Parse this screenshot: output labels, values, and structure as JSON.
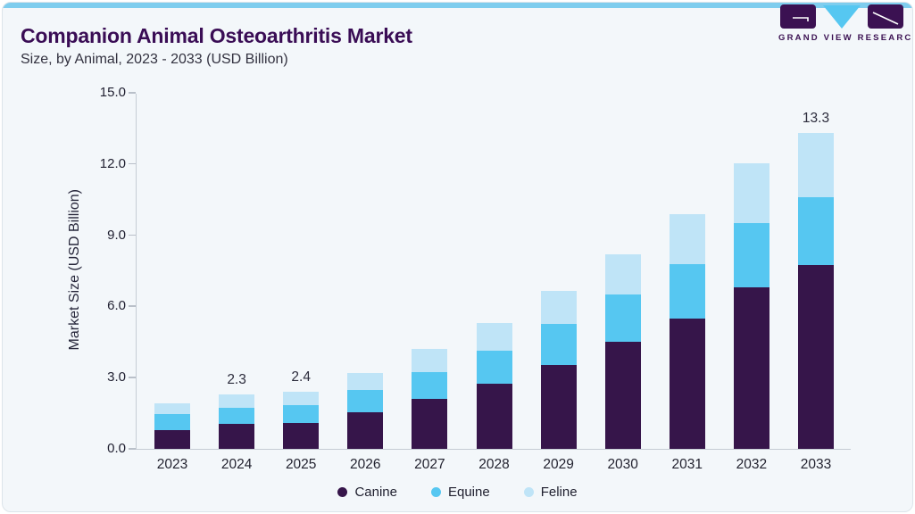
{
  "header": {
    "title": "Companion Animal Osteoarthritis Market",
    "subtitle": "Size, by Animal, 2023 - 2033 (USD Billion)"
  },
  "logo": {
    "brand": "GRAND VIEW RESEARCH",
    "mark_colors": {
      "purple": "#3b1152",
      "blue": "#56c7f1"
    }
  },
  "colors": {
    "card_background": "#f3f7fa",
    "top_accent": "#7ecdee",
    "title_text": "#3a0d55",
    "axis_line": "#c5ccd4",
    "tick_text": "#1f1f30"
  },
  "chart_data": {
    "type": "bar",
    "stacked": true,
    "title": "Companion Animal Osteoarthritis Market",
    "subtitle": "Size, by Animal, 2023 - 2033 (USD Billion)",
    "ylabel": "Market Size (USD Billion)",
    "ylim": [
      0,
      15
    ],
    "yticks": [
      "0.0",
      "3.0",
      "6.0",
      "9.0",
      "12.0",
      "15.0"
    ],
    "grid": false,
    "legend_position": "bottom",
    "categories": [
      "2023",
      "2024",
      "2025",
      "2026",
      "2027",
      "2028",
      "2029",
      "2030",
      "2031",
      "2032",
      "2033"
    ],
    "series": [
      {
        "name": "Canine",
        "color": "#36154a",
        "values": [
          0.8,
          1.05,
          1.1,
          1.55,
          2.1,
          2.75,
          3.55,
          4.5,
          5.5,
          6.8,
          7.75
        ]
      },
      {
        "name": "Equine",
        "color": "#56c7f1",
        "values": [
          0.65,
          0.7,
          0.75,
          0.95,
          1.15,
          1.4,
          1.7,
          2.0,
          2.3,
          2.7,
          2.85
        ]
      },
      {
        "name": "Feline",
        "color": "#bfe4f7",
        "values": [
          0.45,
          0.55,
          0.55,
          0.7,
          0.95,
          1.15,
          1.4,
          1.7,
          2.1,
          2.55,
          2.7
        ]
      }
    ],
    "totals": [
      1.9,
      2.3,
      2.4,
      3.2,
      4.2,
      5.3,
      6.65,
      8.2,
      9.9,
      12.05,
      13.3
    ],
    "bar_labels": {
      "2024": "2.3",
      "2025": "2.4",
      "2033": "13.3"
    }
  }
}
